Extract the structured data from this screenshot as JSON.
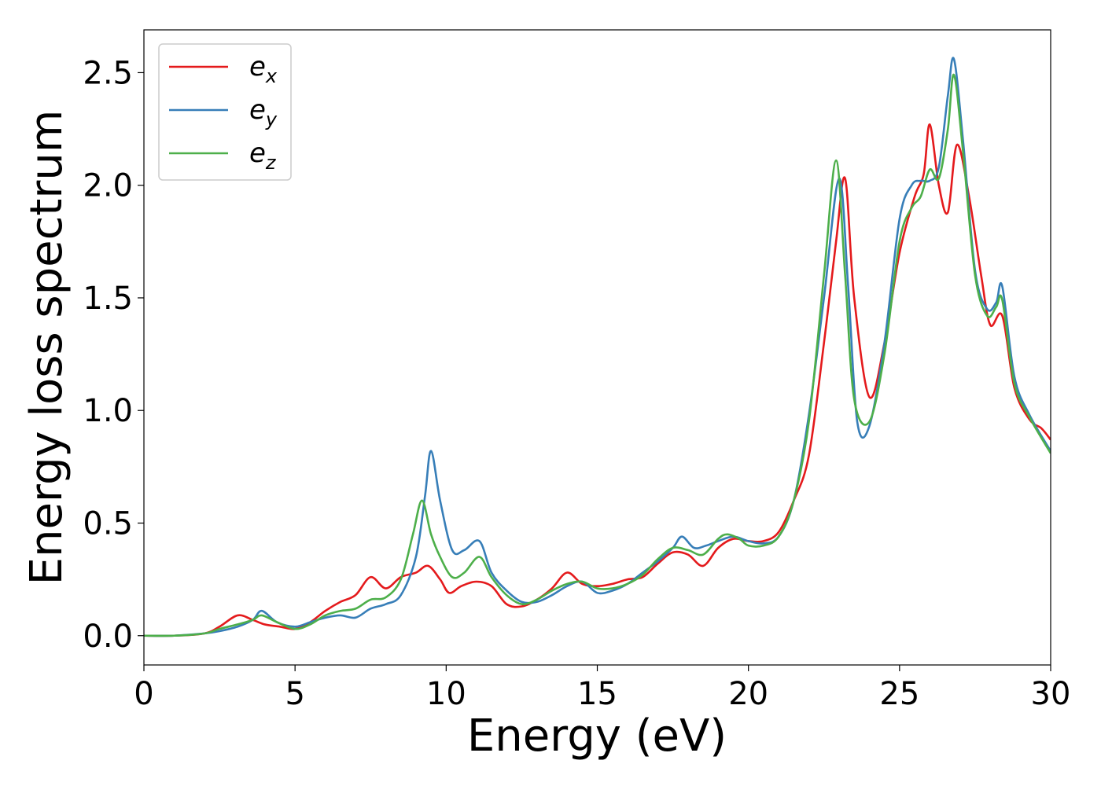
{
  "chart_data": {
    "type": "line",
    "title": "",
    "xlabel": "Energy (eV)",
    "ylabel": "Energy loss spectrum",
    "xlim": [
      0,
      30
    ],
    "ylim": [
      -0.13,
      2.69
    ],
    "xticks": [
      0,
      5,
      10,
      15,
      20,
      25,
      30
    ],
    "xtick_labels": [
      "0",
      "5",
      "10",
      "15",
      "20",
      "25",
      "30"
    ],
    "yticks": [
      0.0,
      0.5,
      1.0,
      1.5,
      2.0,
      2.5
    ],
    "ytick_labels": [
      "0.0",
      "0.5",
      "1.0",
      "1.5",
      "2.0",
      "2.5"
    ],
    "grid": false,
    "legend_position": "top-left",
    "series": [
      {
        "name": "e",
        "subscript": "x",
        "color": "#e41a1c",
        "x": [
          0,
          1,
          2,
          2.5,
          3.1,
          3.6,
          4.0,
          4.5,
          5.0,
          5.5,
          6.0,
          6.5,
          7.0,
          7.5,
          8.0,
          8.5,
          9.0,
          9.4,
          9.8,
          10.1,
          10.5,
          11.0,
          11.5,
          12.0,
          12.5,
          13.0,
          13.5,
          14.0,
          14.5,
          15.0,
          15.5,
          16.0,
          16.5,
          17.0,
          17.5,
          18.0,
          18.5,
          19.0,
          19.5,
          20.0,
          20.5,
          21.0,
          21.5,
          22.0,
          22.5,
          22.9,
          23.2,
          23.5,
          24.0,
          24.5,
          25.0,
          25.5,
          25.8,
          26.0,
          26.3,
          26.6,
          26.9,
          27.3,
          27.7,
          28.0,
          28.4,
          28.8,
          29.3,
          29.7,
          30.0
        ],
        "y": [
          0.0,
          0.0,
          0.01,
          0.04,
          0.09,
          0.07,
          0.05,
          0.04,
          0.03,
          0.06,
          0.11,
          0.15,
          0.18,
          0.26,
          0.21,
          0.26,
          0.28,
          0.31,
          0.25,
          0.19,
          0.22,
          0.24,
          0.22,
          0.14,
          0.13,
          0.16,
          0.21,
          0.28,
          0.23,
          0.22,
          0.23,
          0.25,
          0.26,
          0.32,
          0.37,
          0.36,
          0.31,
          0.39,
          0.43,
          0.42,
          0.42,
          0.46,
          0.6,
          0.8,
          1.3,
          1.75,
          2.03,
          1.5,
          1.06,
          1.3,
          1.7,
          1.95,
          2.05,
          2.27,
          2.0,
          1.88,
          2.18,
          1.95,
          1.6,
          1.38,
          1.42,
          1.1,
          0.96,
          0.92,
          0.87
        ]
      },
      {
        "name": "e",
        "subscript": "y",
        "color": "#377eb8",
        "x": [
          0,
          1,
          2,
          2.5,
          3.1,
          3.6,
          3.9,
          4.4,
          5.0,
          5.5,
          6.0,
          6.5,
          7.0,
          7.5,
          8.0,
          8.5,
          9.0,
          9.3,
          9.5,
          9.8,
          10.2,
          10.6,
          11.1,
          11.5,
          12.0,
          12.5,
          13.0,
          13.5,
          14.0,
          14.5,
          15.0,
          15.5,
          16.0,
          16.5,
          17.0,
          17.5,
          17.8,
          18.2,
          18.6,
          19.0,
          19.5,
          20.0,
          20.5,
          21.0,
          21.5,
          22.0,
          22.5,
          23.0,
          23.3,
          23.6,
          24.0,
          24.5,
          25.0,
          25.4,
          25.7,
          26.0,
          26.3,
          26.6,
          26.8,
          27.1,
          27.5,
          27.9,
          28.2,
          28.4,
          28.8,
          29.3,
          30.0
        ],
        "y": [
          0.0,
          0.0,
          0.01,
          0.02,
          0.04,
          0.07,
          0.11,
          0.06,
          0.04,
          0.06,
          0.08,
          0.09,
          0.08,
          0.12,
          0.14,
          0.18,
          0.35,
          0.62,
          0.82,
          0.6,
          0.38,
          0.38,
          0.42,
          0.28,
          0.2,
          0.15,
          0.15,
          0.18,
          0.22,
          0.24,
          0.19,
          0.2,
          0.23,
          0.28,
          0.33,
          0.39,
          0.44,
          0.39,
          0.4,
          0.42,
          0.44,
          0.42,
          0.41,
          0.44,
          0.6,
          0.98,
          1.5,
          2.03,
          1.55,
          0.95,
          0.93,
          1.3,
          1.85,
          2.0,
          2.02,
          2.02,
          2.08,
          2.4,
          2.56,
          2.2,
          1.62,
          1.45,
          1.48,
          1.55,
          1.15,
          0.98,
          0.82
        ]
      },
      {
        "name": "e",
        "subscript": "z",
        "color": "#4daf4a",
        "x": [
          0,
          1,
          2,
          2.5,
          3.1,
          3.6,
          3.9,
          4.4,
          5.0,
          5.5,
          6.0,
          6.5,
          7.0,
          7.5,
          8.0,
          8.5,
          8.9,
          9.2,
          9.5,
          9.8,
          10.2,
          10.6,
          11.1,
          11.5,
          12.0,
          12.5,
          13.0,
          13.5,
          14.0,
          14.5,
          15.0,
          15.5,
          16.0,
          16.5,
          17.0,
          17.5,
          18.0,
          18.5,
          19.0,
          19.3,
          19.7,
          20.0,
          20.5,
          21.0,
          21.5,
          22.0,
          22.5,
          22.9,
          23.2,
          23.5,
          24.0,
          24.5,
          25.0,
          25.4,
          25.7,
          26.0,
          26.3,
          26.6,
          26.8,
          27.1,
          27.5,
          27.9,
          28.2,
          28.4,
          28.8,
          29.3,
          30.0
        ],
        "y": [
          0.0,
          0.0,
          0.01,
          0.03,
          0.05,
          0.07,
          0.09,
          0.06,
          0.03,
          0.05,
          0.09,
          0.11,
          0.12,
          0.16,
          0.17,
          0.25,
          0.45,
          0.6,
          0.45,
          0.35,
          0.26,
          0.28,
          0.35,
          0.26,
          0.18,
          0.14,
          0.16,
          0.2,
          0.23,
          0.24,
          0.21,
          0.21,
          0.23,
          0.27,
          0.34,
          0.39,
          0.38,
          0.36,
          0.43,
          0.45,
          0.43,
          0.4,
          0.4,
          0.44,
          0.6,
          0.95,
          1.6,
          2.11,
          1.6,
          1.05,
          0.95,
          1.25,
          1.75,
          1.9,
          1.95,
          2.07,
          2.03,
          2.25,
          2.49,
          2.15,
          1.6,
          1.42,
          1.46,
          1.49,
          1.12,
          0.97,
          0.81
        ]
      }
    ]
  }
}
